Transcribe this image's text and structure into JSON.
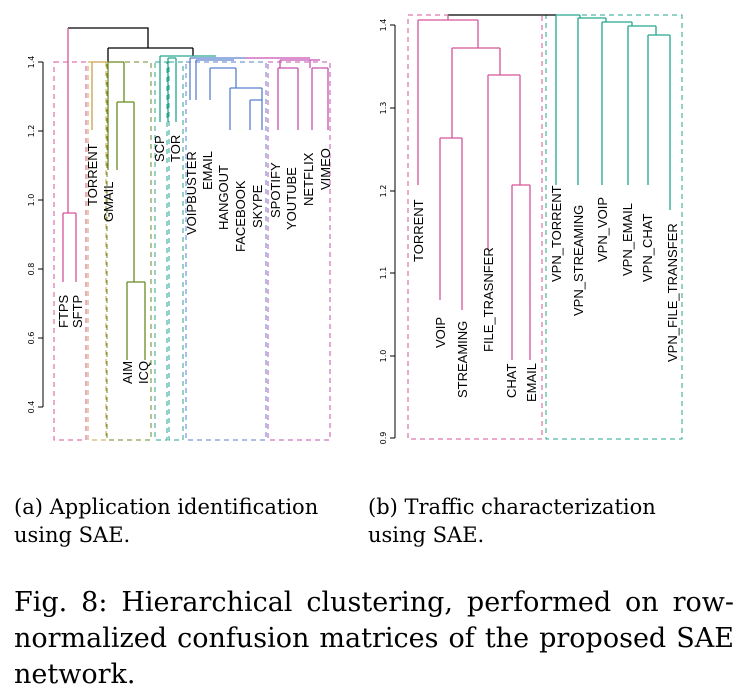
{
  "panel_a": {
    "caption": "(a) Application identification using SAE.",
    "y_ticks": [
      "0.4",
      "0.6",
      "0.8",
      "1.0",
      "1.2",
      "1.4"
    ],
    "leaves": [
      "FTPS",
      "SFTP",
      "TORRENT",
      "GMAIL",
      "AIM",
      "ICQ",
      "SCP",
      "TOR",
      "VOIPBUSTER",
      "EMAIL",
      "HANGOUT",
      "FACEBOOK",
      "SKYPE",
      "SPOTIFY",
      "YOUTUBE",
      "NETFLIX",
      "VIMEO"
    ]
  },
  "panel_b": {
    "caption": "(b) Traffic characterization using SAE.",
    "y_ticks": [
      "0.9",
      "1.0",
      "1.1",
      "1.2",
      "1.3",
      "1.4"
    ],
    "leaves": [
      "TORRENT",
      "VOIP",
      "STREAMING",
      "FILE_TRASNFER",
      "CHAT",
      "EMAIL",
      "VPN_TORRENT",
      "VPN_STREAMING",
      "VPN_VOIP",
      "VPN_EMAIL",
      "VPN_CHAT",
      "VPN_FILE_TRANSFER"
    ]
  },
  "figure_caption": "Fig. 8: Hierarchical clustering, performed on row-normalized confusion matrices of the proposed SAE network.",
  "colors": {
    "pink": "#d6559a",
    "olive": "#6b8a22",
    "orange": "#c9a24a",
    "teal": "#24a68f",
    "blue": "#5b7fd0",
    "magenta": "#c651b0",
    "black": "#000000"
  }
}
